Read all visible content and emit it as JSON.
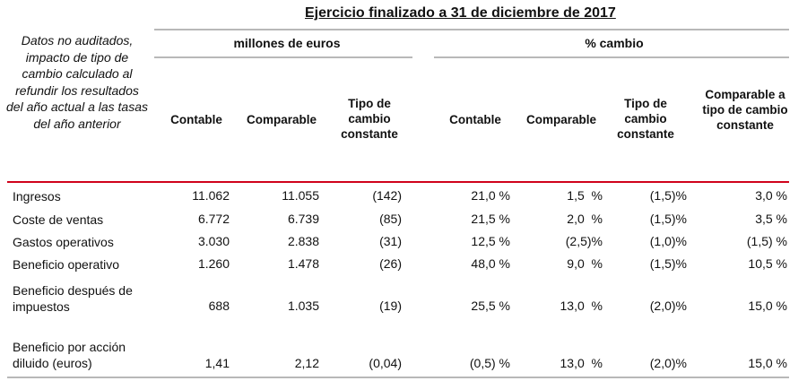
{
  "title": "Ejercicio finalizado a 31 de diciembre de 2017",
  "note": "Datos no auditados, impacto de tipo de cambio calculado al refundir los resultados del año actual a las tasas del año anterior",
  "groups": {
    "millions": "millones de euros",
    "pct": "% cambio"
  },
  "columns": [
    "Contable",
    "Comparable",
    "Tipo de cambio constante",
    "Contable",
    "Comparable",
    "Tipo de cambio constante",
    "Comparable a tipo de cambio constante"
  ],
  "rows": [
    {
      "label": "Ingresos",
      "values": [
        "11.062",
        "11.055",
        "(142)",
        "21,0 %",
        "1,5  %",
        "(1,5)%",
        "3,0 %"
      ]
    },
    {
      "label": "Coste de ventas",
      "values": [
        "6.772",
        "6.739",
        "(85)",
        "21,5 %",
        "2,0  %",
        "(1,5)%",
        "3,5 %"
      ]
    },
    {
      "label": "Gastos operativos",
      "values": [
        "3.030",
        "2.838",
        "(31)",
        "12,5 %",
        "(2,5)%",
        "(1,0)%",
        "(1,5) %"
      ]
    },
    {
      "label": "Beneficio operativo",
      "values": [
        "1.260",
        "1.478",
        "(26)",
        "48,0 %",
        "9,0  %",
        "(1,5)%",
        "10,5 %"
      ]
    },
    {
      "label": "Beneficio después de impuestos",
      "values": [
        "688",
        "1.035",
        "(19)",
        "25,5 %",
        "13,0  %",
        "(2,0)%",
        "15,0 %"
      ]
    },
    {
      "label": "Beneficio por acción diluido (euros)",
      "values": [
        "1,41",
        "2,12",
        "(0,04)",
        "(0,5) %",
        "13,0  %",
        "(2,0)%",
        "15,0 %"
      ]
    }
  ],
  "colors": {
    "accent_rule": "#d0021b",
    "rule": "#b8b8b8"
  }
}
